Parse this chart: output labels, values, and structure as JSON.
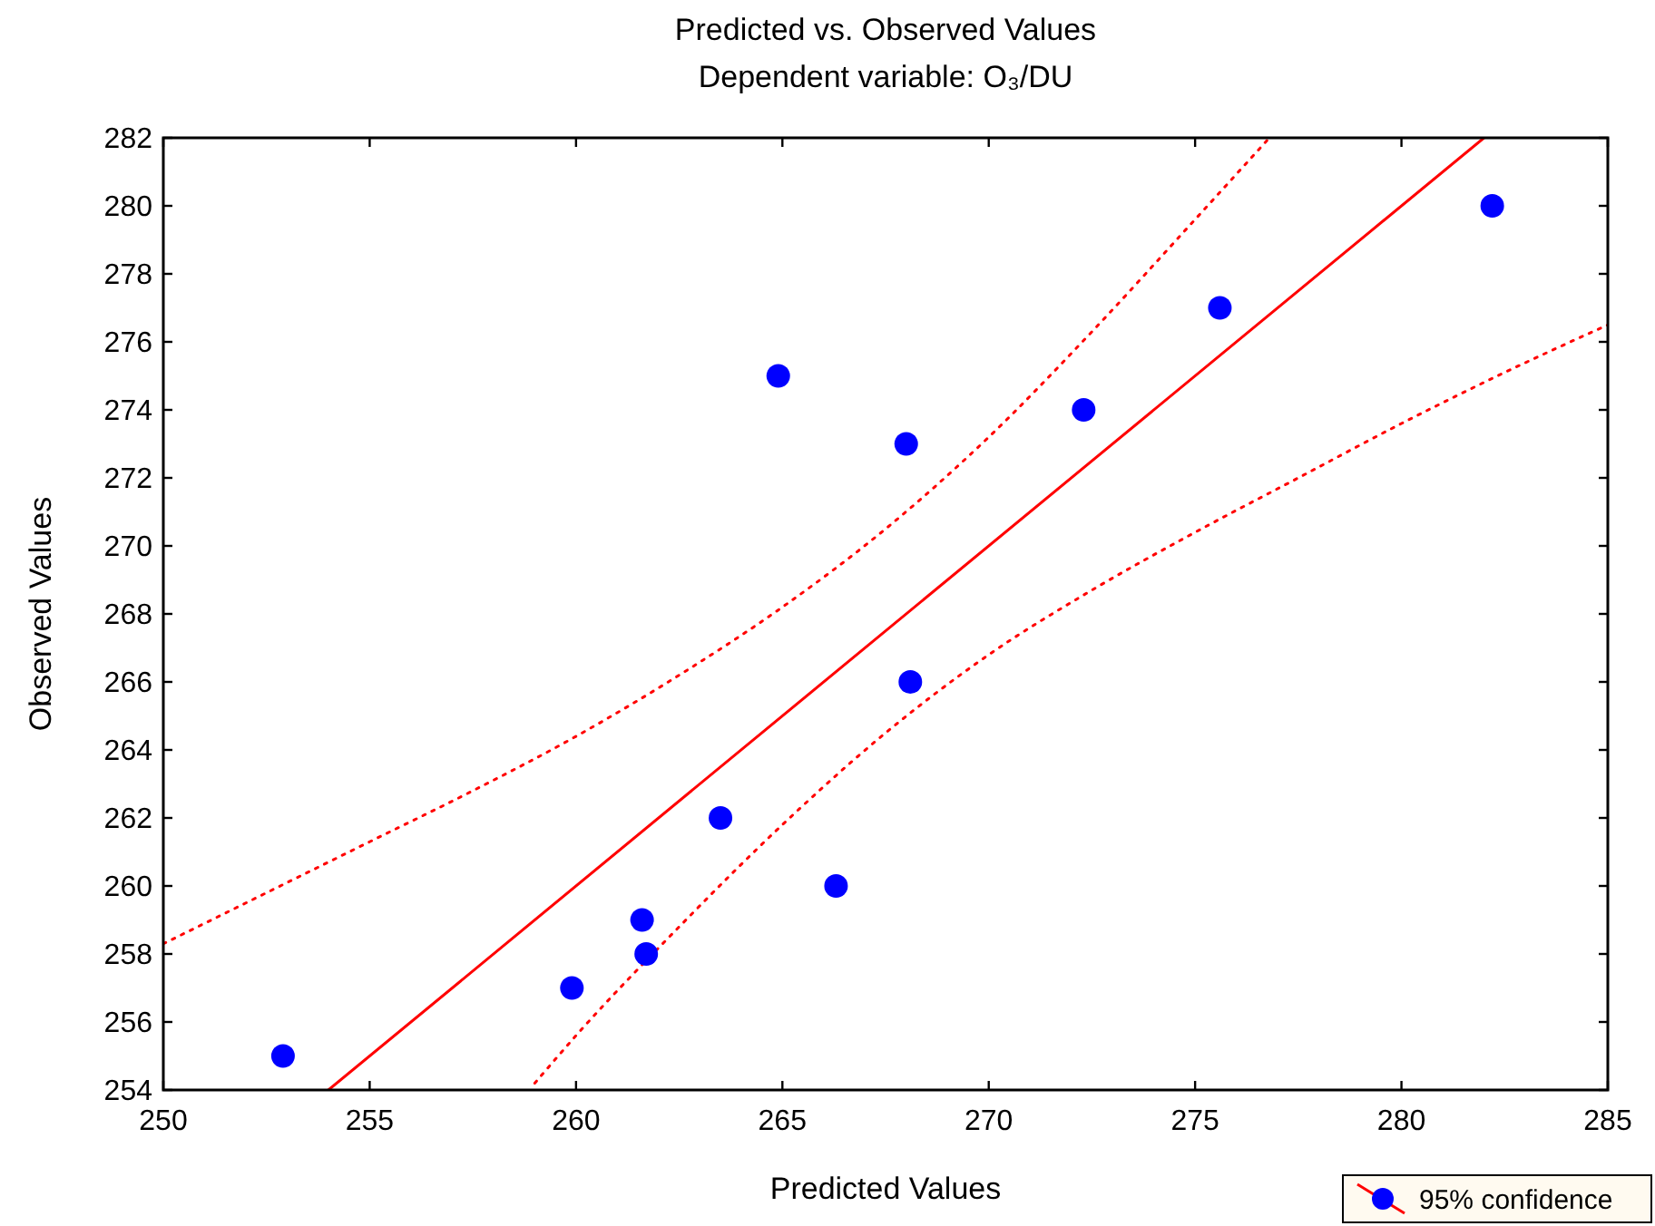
{
  "chart_data": {
    "type": "scatter",
    "title": "Predicted vs. Observed Values",
    "subtitle": "Dependent variable: O₃/DU",
    "xlabel": "Predicted Values",
    "ylabel": "Observed Values",
    "xlim": [
      250,
      285
    ],
    "xticks": [
      250,
      255,
      260,
      265,
      270,
      275,
      280,
      285
    ],
    "ylim": [
      254,
      282
    ],
    "yticks": [
      254,
      256,
      258,
      260,
      262,
      264,
      266,
      268,
      270,
      272,
      274,
      276,
      278,
      280,
      282
    ],
    "grid": false,
    "legend": "bottom right",
    "marker": "circle",
    "series": [
      {
        "name": "95% confidence",
        "color": "#0000ff",
        "x": [
          252.9,
          259.9,
          261.6,
          261.7,
          263.5,
          264.9,
          266.3,
          268.0,
          268.1,
          272.3,
          275.6,
          282.2
        ],
        "values": [
          255,
          257,
          259,
          258,
          262,
          275,
          260,
          273,
          266,
          274,
          277,
          280
        ]
      },
      {
        "type": "line",
        "color": "#ff0000",
        "line_style": "solid",
        "marker": "none",
        "x": [
          254,
          282
        ],
        "values": [
          254,
          282
        ]
      },
      {
        "type": "line",
        "color": "#ff0000",
        "line_style": "dotted",
        "marker": "none",
        "x": [
          250,
          252.5,
          255,
          257.5,
          260,
          262.5,
          265,
          267.5,
          270,
          272.5,
          275,
          276.8
        ],
        "values": [
          258.3,
          259.8,
          261.3,
          262.8,
          264.4,
          266.2,
          268.2,
          270.5,
          273.2,
          276.3,
          279.6,
          282.0
        ]
      },
      {
        "type": "line",
        "color": "#ff0000",
        "line_style": "dotted",
        "marker": "none",
        "x": [
          259,
          260,
          262.5,
          265,
          267.5,
          270,
          272.5,
          275,
          277.5,
          280,
          282.5,
          285
        ],
        "values": [
          254.2,
          255.6,
          258.8,
          261.8,
          264.5,
          266.8,
          268.7,
          270.4,
          272.0,
          273.6,
          275.1,
          276.5
        ]
      }
    ]
  }
}
